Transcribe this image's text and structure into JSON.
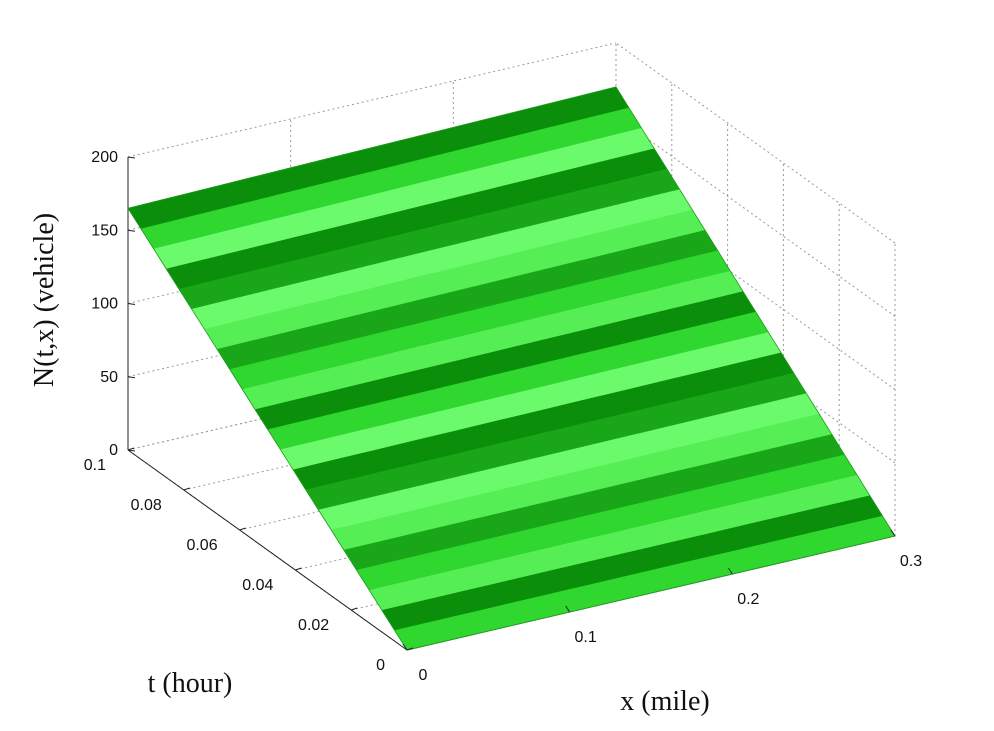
{
  "chart_data": {
    "type": "surface3d",
    "title": "",
    "xlabel": "x (mile)",
    "ylabel": "t (hour)",
    "zlabel": "N(t,x) (vehicle)",
    "xlim": [
      0,
      0.3
    ],
    "ylim": [
      0,
      0.1
    ],
    "zlim": [
      0,
      200
    ],
    "x_ticks": [
      "0",
      "0.1",
      "0.2",
      "0.3"
    ],
    "y_ticks": [
      "0",
      "0.02",
      "0.04",
      "0.06",
      "0.08",
      "0.1"
    ],
    "z_ticks": [
      "0",
      "50",
      "100",
      "150",
      "200"
    ],
    "grid": true,
    "surface_color": "#33dd33",
    "surface_shades": [
      "#2fd72f",
      "#55ef55",
      "#19a719",
      "#6bfa6b",
      "#0b8f0b"
    ],
    "surface_edges": {
      "t_at_x_start": [
        0,
        0.1
      ],
      "N_at_x_start": [
        0,
        165
      ],
      "t_at_x_end": [
        0,
        0.1
      ],
      "N_at_x_end": [
        0,
        170
      ]
    }
  }
}
